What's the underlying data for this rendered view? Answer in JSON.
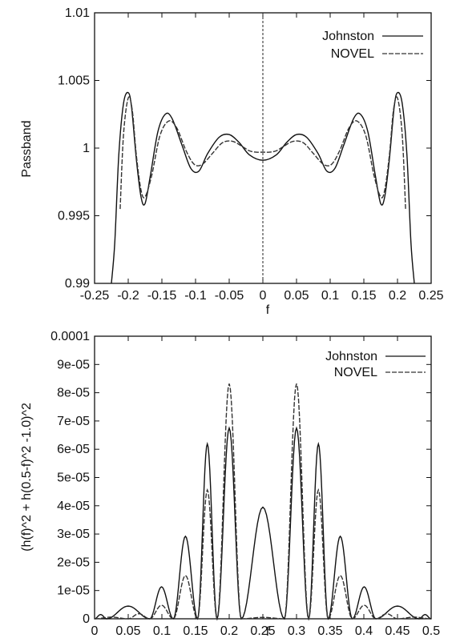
{
  "chart_data": [
    {
      "type": "line",
      "title": "",
      "xlabel": "f",
      "ylabel": "Passband",
      "xlim": [
        -0.25,
        0.25
      ],
      "ylim": [
        0.99,
        1.01
      ],
      "x_ticks": [
        -0.25,
        -0.2,
        -0.15,
        -0.1,
        -0.05,
        0,
        0.05,
        0.1,
        0.15,
        0.2,
        0.25
      ],
      "x_tick_labels": [
        "-0.25",
        "-0.2",
        "-0.15",
        "-0.1",
        "-0.05",
        "0",
        "0.05",
        "0.1",
        "0.15",
        "0.2",
        "0.25"
      ],
      "y_ticks": [
        0.99,
        0.995,
        1,
        1.005,
        1.01
      ],
      "y_tick_labels": [
        "0.99",
        "0.995",
        "1",
        "1.005",
        "1.01"
      ],
      "legend_position": "top-right",
      "vertical_line_at": 0,
      "series": [
        {
          "name": "Johnston",
          "color": "#111111",
          "dash": "solid",
          "points": [
            [
              -0.225,
              0.9874
            ],
            [
              -0.22,
              0.993
            ],
            [
              -0.214,
              0.9995
            ],
            [
              -0.207,
              1.0033
            ],
            [
              -0.2,
              1.0041
            ],
            [
              -0.195,
              1.003
            ],
            [
              -0.188,
              0.9992
            ],
            [
              -0.181,
              0.9964
            ],
            [
              -0.175,
              0.9959
            ],
            [
              -0.167,
              0.998
            ],
            [
              -0.156,
              1.0012
            ],
            [
              -0.145,
              1.0025
            ],
            [
              -0.135,
              1.0022
            ],
            [
              -0.12,
              1.0002
            ],
            [
              -0.107,
              0.9985
            ],
            [
              -0.095,
              0.9983
            ],
            [
              -0.082,
              0.9996
            ],
            [
              -0.065,
              1.0008
            ],
            [
              -0.05,
              1.001
            ],
            [
              -0.035,
              1.0004
            ],
            [
              -0.02,
              0.9995
            ],
            [
              0,
              0.9991
            ],
            [
              0.02,
              0.9995
            ],
            [
              0.035,
              1.0004
            ],
            [
              0.05,
              1.001
            ],
            [
              0.065,
              1.0008
            ],
            [
              0.082,
              0.9996
            ],
            [
              0.095,
              0.9983
            ],
            [
              0.107,
              0.9985
            ],
            [
              0.12,
              1.0002
            ],
            [
              0.135,
              1.0022
            ],
            [
              0.145,
              1.0025
            ],
            [
              0.156,
              1.0012
            ],
            [
              0.167,
              0.998
            ],
            [
              0.175,
              0.9959
            ],
            [
              0.181,
              0.9964
            ],
            [
              0.188,
              0.9992
            ],
            [
              0.195,
              1.003
            ],
            [
              0.2,
              1.0041
            ],
            [
              0.207,
              1.0033
            ],
            [
              0.214,
              0.9995
            ],
            [
              0.22,
              0.993
            ],
            [
              0.225,
              0.9874
            ]
          ]
        },
        {
          "name": "NOVEL",
          "color": "#333333",
          "dash": "dashed",
          "points": [
            [
              -0.212,
              0.9955
            ],
            [
              -0.207,
              1.001
            ],
            [
              -0.2,
              1.0037
            ],
            [
              -0.194,
              1.0028
            ],
            [
              -0.188,
              0.9995
            ],
            [
              -0.181,
              0.9969
            ],
            [
              -0.175,
              0.9964
            ],
            [
              -0.165,
              0.998
            ],
            [
              -0.153,
              1.0009
            ],
            [
              -0.14,
              1.002
            ],
            [
              -0.128,
              1.0015
            ],
            [
              -0.114,
              0.9998
            ],
            [
              -0.102,
              0.9988
            ],
            [
              -0.09,
              0.9988
            ],
            [
              -0.075,
              0.9996
            ],
            [
              -0.06,
              1.0004
            ],
            [
              -0.045,
              1.0005
            ],
            [
              -0.03,
              1.0001
            ],
            [
              -0.02,
              0.9998
            ],
            [
              -0.01,
              0.9997
            ],
            [
              0,
              0.9997
            ],
            [
              0.01,
              0.9997
            ],
            [
              0.02,
              0.9998
            ],
            [
              0.03,
              1.0001
            ],
            [
              0.045,
              1.0005
            ],
            [
              0.06,
              1.0004
            ],
            [
              0.075,
              0.9996
            ],
            [
              0.09,
              0.9988
            ],
            [
              0.102,
              0.9988
            ],
            [
              0.114,
              0.9998
            ],
            [
              0.128,
              1.0015
            ],
            [
              0.14,
              1.002
            ],
            [
              0.153,
              1.0009
            ],
            [
              0.165,
              0.998
            ],
            [
              0.175,
              0.9964
            ],
            [
              0.181,
              0.9969
            ],
            [
              0.188,
              0.9995
            ],
            [
              0.194,
              1.0028
            ],
            [
              0.2,
              1.0037
            ],
            [
              0.207,
              1.001
            ],
            [
              0.212,
              0.9955
            ]
          ]
        }
      ]
    },
    {
      "type": "line",
      "title": "",
      "xlabel": "f",
      "ylabel": "(h(f)^2 + h(0.5-f)^2 -1.0)^2",
      "xlim": [
        0,
        0.5
      ],
      "ylim": [
        0,
        0.0001
      ],
      "x_ticks": [
        0,
        0.05,
        0.1,
        0.15,
        0.2,
        0.25,
        0.3,
        0.35,
        0.4,
        0.45,
        0.5
      ],
      "x_tick_labels": [
        "0",
        "0.05",
        "0.1",
        "0.15",
        "0.2",
        "0.25",
        "0.3",
        "0.35",
        "0.4",
        "0.45",
        "0.5"
      ],
      "y_ticks": [
        0,
        1e-05,
        2e-05,
        3e-05,
        4e-05,
        5e-05,
        6e-05,
        7e-05,
        8e-05,
        9e-05,
        0.0001
      ],
      "y_tick_labels": [
        "0",
        "1e-05",
        "2e-05",
        "3e-05",
        "4e-05",
        "5e-05",
        "6e-05",
        "7e-05",
        "8e-05",
        "9e-05",
        "0.0001"
      ],
      "legend_position": "top-right",
      "series": [
        {
          "name": "Johnston",
          "color": "#111111",
          "dash": "solid",
          "lobes": [
            [
              0,
              0.018,
              1.5e-06
            ],
            [
              0.018,
              0.082,
              4.5e-06
            ],
            [
              0.082,
              0.117,
              1.13e-05
            ],
            [
              0.117,
              0.153,
              2.92e-05
            ],
            [
              0.153,
              0.182,
              6.19e-05
            ],
            [
              0.182,
              0.218,
              6.75e-05
            ],
            [
              0.218,
              0.282,
              3.95e-05
            ],
            [
              0.282,
              0.318,
              6.75e-05
            ],
            [
              0.318,
              0.347,
              6.19e-05
            ],
            [
              0.347,
              0.383,
              2.92e-05
            ],
            [
              0.383,
              0.418,
              1.13e-05
            ],
            [
              0.418,
              0.482,
              4.5e-06
            ],
            [
              0.482,
              0.5,
              1.5e-06
            ]
          ]
        },
        {
          "name": "NOVEL",
          "color": "#333333",
          "dash": "dashed",
          "lobes": [
            [
              0,
              0.05,
              6e-07
            ],
            [
              0.05,
              0.082,
              1.8e-06
            ],
            [
              0.082,
              0.117,
              4.8e-06
            ],
            [
              0.117,
              0.153,
              1.53e-05
            ],
            [
              0.153,
              0.182,
              4.56e-05
            ],
            [
              0.182,
              0.218,
              8.32e-05
            ],
            [
              0.218,
              0.282,
              5e-07
            ],
            [
              0.282,
              0.318,
              8.32e-05
            ],
            [
              0.318,
              0.347,
              4.56e-05
            ],
            [
              0.347,
              0.383,
              1.53e-05
            ],
            [
              0.383,
              0.418,
              4.8e-06
            ],
            [
              0.418,
              0.45,
              1.8e-06
            ],
            [
              0.45,
              0.5,
              6e-07
            ]
          ]
        }
      ]
    }
  ]
}
